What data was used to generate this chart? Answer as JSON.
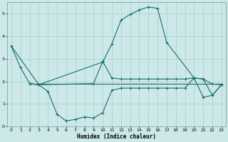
{
  "xlabel": "Humidex (Indice chaleur)",
  "bg_color": "#cce8e8",
  "grid_color": "#aacece",
  "line_color": "#1a6e6e",
  "xlim": [
    -0.5,
    23.5
  ],
  "ylim": [
    0,
    5.5
  ],
  "yticks": [
    0,
    1,
    2,
    3,
    4,
    5
  ],
  "xticks": [
    0,
    1,
    2,
    3,
    4,
    5,
    6,
    7,
    8,
    9,
    10,
    11,
    12,
    13,
    14,
    15,
    16,
    17,
    18,
    19,
    20,
    21,
    22,
    23
  ],
  "line1_x": [
    0,
    1,
    2,
    3,
    4,
    5,
    6,
    7,
    8,
    9,
    10,
    11,
    12,
    13,
    14,
    15,
    16,
    17,
    18,
    19,
    20,
    21,
    22,
    23
  ],
  "line1_y": [
    3.55,
    2.6,
    1.9,
    1.85,
    1.55,
    0.55,
    0.25,
    0.32,
    0.43,
    0.38,
    0.62,
    1.6,
    1.7,
    1.7,
    1.7,
    1.7,
    1.7,
    1.7,
    1.7,
    1.7,
    2.15,
    1.3,
    1.38,
    1.85
  ],
  "line2_x": [
    2,
    23
  ],
  "line2_y": [
    1.9,
    1.9
  ],
  "line3_x": [
    0,
    3,
    10,
    11,
    12,
    13,
    14,
    15,
    16,
    17,
    20,
    21,
    22,
    23
  ],
  "line3_y": [
    3.55,
    1.85,
    2.85,
    3.65,
    4.7,
    4.95,
    5.15,
    5.28,
    5.22,
    3.72,
    2.15,
    2.1,
    1.38,
    1.85
  ],
  "line4_x": [
    2,
    3,
    9,
    10,
    11,
    12,
    13,
    14,
    15,
    16,
    17,
    18,
    19,
    20,
    21,
    22,
    23
  ],
  "line4_y": [
    1.9,
    1.85,
    1.9,
    2.88,
    2.15,
    2.1,
    2.1,
    2.1,
    2.1,
    2.1,
    2.1,
    2.1,
    2.1,
    2.15,
    2.1,
    1.88,
    1.85
  ]
}
